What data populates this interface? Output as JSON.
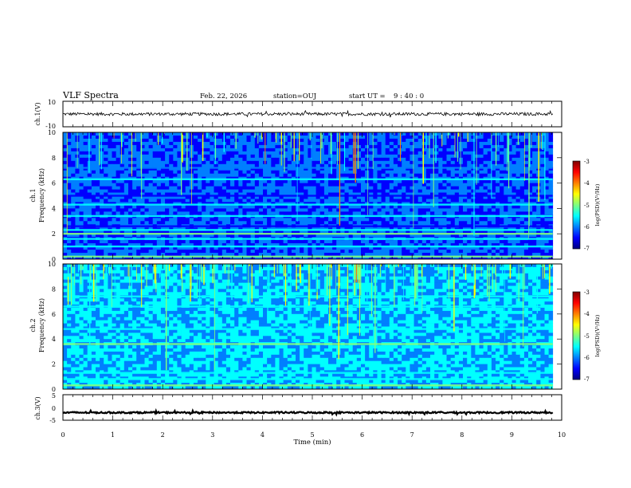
{
  "header": {
    "title": "VLF Spectra",
    "date": "Feb. 22, 2026",
    "station": "station=OUJ",
    "start_label": "start  UT =",
    "start_time": "9 : 40 : 0"
  },
  "colormap": [
    "#00007f",
    "#0000ff",
    "#007fff",
    "#00ffff",
    "#7fff7f",
    "#ffff00",
    "#ff7f00",
    "#ff0000",
    "#7f0000"
  ],
  "chart_data": [
    {
      "id": "ch1_waveform",
      "type": "line",
      "ylabel": "ch.1(V)",
      "ylim": [
        -10,
        10
      ],
      "yticks": [
        "10",
        "-10"
      ],
      "xlim": [
        0,
        10
      ],
      "series": [
        {
          "name": "ch.1",
          "baseline": 0,
          "noise_amplitude": 1.2,
          "color": "#000000"
        }
      ]
    },
    {
      "id": "ch1_spectrogram",
      "type": "heatmap",
      "ylabel_top": "ch.1",
      "ylabel": "Frequency (kHz)",
      "ylim": [
        0,
        10
      ],
      "yticks": [
        "0",
        "2",
        "4",
        "6",
        "8",
        "10"
      ],
      "xlim": [
        0,
        10
      ],
      "data_end_min": 9.82,
      "colorbar": {
        "label": "log(PSD)(V²/Hz)",
        "range": [
          -7,
          -3
        ],
        "ticks": [
          "-3",
          "-4",
          "-5",
          "-6",
          "-7"
        ]
      },
      "bands": [
        {
          "f": 0.2,
          "level": 3.5
        },
        {
          "f": 1.0,
          "level": 2.8
        },
        {
          "f": 1.6,
          "level": 3.0
        },
        {
          "f": 2.0,
          "level": 3.6
        },
        {
          "f": 2.3,
          "level": 2.6
        },
        {
          "f": 2.6,
          "level": 0.5
        },
        {
          "f": 3.4,
          "level": 2.6
        },
        {
          "f": 4.3,
          "level": 2.5
        },
        {
          "f": 5.0,
          "level": 0.6
        },
        {
          "f": 6.3,
          "level": 2.6
        },
        {
          "f": 7.2,
          "level": 2.4
        }
      ],
      "spheric_density": 0.22,
      "background_level": 1.6
    },
    {
      "id": "ch2_spectrogram",
      "type": "heatmap",
      "ylabel_top": "ch.2",
      "ylabel": "Frequency (kHz)",
      "ylim": [
        0,
        10
      ],
      "yticks": [
        "0",
        "2",
        "4",
        "6",
        "8",
        "10"
      ],
      "xlim": [
        0,
        10
      ],
      "data_end_min": 9.82,
      "colorbar": {
        "label": "log(PSD)(V²/Hz)",
        "range": [
          -7,
          -3
        ],
        "ticks": [
          "-3",
          "-4",
          "-5",
          "-6",
          "-7"
        ]
      },
      "bands": [
        {
          "f": 0.3,
          "level": 3.5
        },
        {
          "f": 0.8,
          "level": 3.2
        },
        {
          "f": 1.3,
          "level": 3.0
        },
        {
          "f": 3.6,
          "level": 4.3
        },
        {
          "f": 4.8,
          "level": 3.3
        },
        {
          "f": 6.6,
          "level": 3.3
        },
        {
          "f": 7.4,
          "level": 3.0
        }
      ],
      "spheric_density": 0.34,
      "background_level": 2.6
    },
    {
      "id": "ch3_waveform",
      "type": "line",
      "ylabel": "ch.3(V)",
      "ylim": [
        -5,
        5
      ],
      "yticks": [
        "5",
        "0",
        "-5"
      ],
      "xlim": [
        0,
        10
      ],
      "xlabel": "Time (min)",
      "xticks": [
        "0",
        "1",
        "2",
        "3",
        "4",
        "5",
        "6",
        "7",
        "8",
        "9",
        "10"
      ],
      "series": [
        {
          "name": "ch.3",
          "baseline": -2,
          "noise_amplitude": 0.3,
          "color": "#000000"
        }
      ]
    }
  ]
}
